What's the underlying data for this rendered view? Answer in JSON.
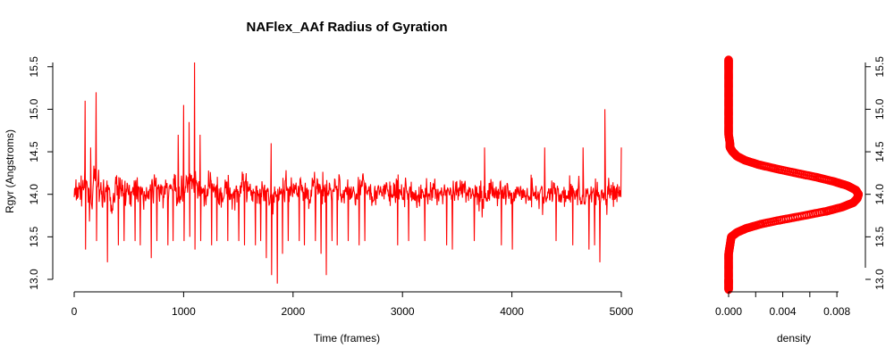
{
  "chart_data": [
    {
      "type": "line",
      "title": "NAFlex_AAf Radius of Gyration",
      "xlabel": "Time (frames)",
      "ylabel": "Rgyr (Angstroms)",
      "xlim": [
        0,
        5000
      ],
      "ylim": [
        13.0,
        15.55
      ],
      "xticks": [
        "0",
        "1000",
        "2000",
        "3000",
        "4000",
        "5000"
      ],
      "yticks": [
        "13.0",
        "13.5",
        "14.0",
        "14.5",
        "15.0",
        "15.5"
      ],
      "series": [
        {
          "color": "#ff0000",
          "n_frames": 5000,
          "x": [
            0,
            50,
            100,
            150,
            200,
            250,
            300,
            350,
            400,
            450,
            500,
            550,
            600,
            650,
            700,
            750,
            800,
            850,
            900,
            950,
            1000,
            1050,
            1100,
            1150,
            1200,
            1250,
            1300,
            1350,
            1400,
            1450,
            1500,
            1550,
            1600,
            1650,
            1700,
            1750,
            1800,
            1850,
            1900,
            1950,
            2000,
            2050,
            2100,
            2150,
            2200,
            2250,
            2300,
            2350,
            2400,
            2450,
            2500,
            2550,
            2600,
            2650,
            2700,
            2750,
            2800,
            2850,
            2900,
            2950,
            3000,
            3050,
            3100,
            3150,
            3200,
            3250,
            3300,
            3350,
            3400,
            3450,
            3500,
            3550,
            3600,
            3650,
            3700,
            3750,
            3800,
            3850,
            3900,
            3950,
            4000,
            4050,
            4100,
            4150,
            4200,
            4250,
            4300,
            4350,
            4400,
            4450,
            4500,
            4550,
            4600,
            4650,
            4700,
            4750,
            4800,
            4850,
            4900,
            4950,
            5000
          ],
          "y": [
            14.0,
            14.05,
            14.1,
            13.95,
            14.15,
            14.0,
            14.05,
            13.9,
            14.1,
            14.05,
            14.0,
            14.1,
            14.05,
            13.95,
            14.05,
            14.1,
            14.0,
            14.05,
            14.1,
            14.0,
            14.05,
            14.15,
            14.1,
            14.05,
            14.0,
            14.1,
            14.05,
            14.0,
            14.05,
            14.0,
            14.05,
            14.1,
            14.0,
            14.05,
            14.05,
            14.0,
            13.95,
            14.0,
            14.05,
            14.1,
            14.05,
            14.1,
            14.05,
            14.0,
            14.1,
            14.05,
            14.0,
            14.05,
            14.1,
            14.0,
            14.05,
            14.0,
            14.05,
            14.1,
            14.05,
            14.0,
            14.0,
            14.05,
            14.0,
            14.05,
            14.0,
            14.05,
            14.0,
            13.95,
            14.05,
            14.0,
            14.05,
            14.0,
            14.05,
            14.0,
            14.0,
            14.05,
            14.0,
            14.05,
            14.0,
            13.95,
            14.05,
            14.0,
            14.05,
            14.0,
            14.0,
            14.05,
            14.0,
            14.0,
            14.05,
            14.0,
            13.95,
            14.0,
            14.05,
            14.0,
            14.0,
            14.05,
            14.0,
            13.95,
            14.0,
            14.05,
            14.0,
            13.95,
            14.05,
            14.0,
            13.95
          ],
          "min": [
            13.6,
            13.5,
            13.35,
            13.5,
            13.45,
            13.4,
            13.2,
            13.5,
            13.4,
            13.45,
            13.5,
            13.45,
            13.4,
            13.5,
            13.25,
            13.45,
            13.5,
            13.4,
            13.45,
            13.5,
            13.45,
            13.5,
            13.35,
            13.45,
            13.4,
            13.4,
            13.45,
            13.5,
            13.45,
            13.5,
            13.45,
            13.4,
            13.5,
            13.4,
            13.45,
            13.25,
            13.05,
            12.95,
            13.3,
            13.45,
            13.5,
            13.45,
            13.4,
            13.5,
            13.45,
            13.3,
            13.05,
            13.45,
            13.4,
            13.5,
            13.45,
            13.5,
            13.4,
            13.45,
            13.5,
            13.45,
            13.4,
            13.5,
            13.45,
            13.4,
            13.5,
            13.45,
            13.4,
            13.5,
            13.45,
            13.4,
            13.5,
            13.45,
            13.4,
            13.35,
            13.45,
            13.5,
            13.4,
            13.45,
            13.5,
            13.45,
            13.5,
            13.45,
            13.4,
            13.45,
            13.35,
            13.5,
            13.45,
            13.4,
            13.5,
            13.45,
            13.5,
            13.4,
            13.45,
            13.5,
            13.45,
            13.4,
            13.5,
            13.45,
            13.35,
            13.4,
            13.2,
            13.45,
            13.5,
            13.45,
            13.5
          ],
          "max": [
            14.3,
            14.6,
            15.1,
            14.55,
            15.2,
            14.6,
            14.55,
            14.5,
            14.6,
            14.55,
            14.45,
            14.65,
            14.6,
            14.5,
            14.55,
            14.6,
            14.55,
            14.5,
            14.65,
            14.7,
            15.05,
            14.85,
            15.55,
            14.7,
            14.6,
            14.6,
            14.55,
            14.6,
            14.5,
            14.55,
            14.6,
            14.5,
            14.55,
            14.6,
            14.5,
            14.55,
            14.6,
            14.5,
            14.55,
            14.5,
            14.6,
            14.55,
            14.5,
            14.6,
            14.55,
            14.5,
            14.6,
            14.5,
            14.55,
            14.6,
            14.5,
            14.55,
            14.6,
            14.5,
            14.55,
            14.6,
            14.5,
            14.55,
            14.6,
            14.5,
            14.55,
            14.5,
            14.55,
            14.5,
            14.6,
            14.55,
            14.5,
            14.55,
            14.6,
            14.5,
            14.55,
            14.5,
            14.55,
            14.5,
            14.6,
            14.55,
            14.5,
            14.55,
            14.5,
            14.6,
            14.55,
            14.5,
            14.55,
            14.5,
            14.55,
            14.5,
            14.55,
            14.5,
            14.55,
            14.6,
            14.55,
            14.5,
            14.6,
            14.55,
            14.5,
            14.6,
            14.55,
            15.0,
            14.6,
            14.6,
            14.55
          ]
        }
      ]
    },
    {
      "type": "line",
      "xlabel": "density",
      "xlim": [
        0,
        0.0095
      ],
      "ylim": [
        13.0,
        15.55
      ],
      "xticks": [
        "0.000",
        "0.004",
        "0.008"
      ],
      "yticks": [
        "13.0",
        "13.5",
        "14.0",
        "14.5",
        "15.0",
        "15.5"
      ],
      "series": [
        {
          "color": "#ff0000",
          "marker": "circle",
          "y": [
            12.88,
            12.95,
            13.0,
            13.1,
            13.2,
            13.3,
            13.4,
            13.5,
            13.55,
            13.6,
            13.65,
            13.7,
            13.75,
            13.8,
            13.85,
            13.9,
            13.95,
            14.0,
            14.05,
            14.1,
            14.15,
            14.2,
            14.25,
            14.3,
            14.35,
            14.4,
            14.45,
            14.5,
            14.55,
            14.6,
            14.7,
            14.8,
            14.9,
            15.0,
            15.1,
            15.2,
            15.3,
            15.4,
            15.5,
            15.58
          ],
          "x": [
            0.0,
            0.0,
            0.0,
            0.0,
            0.0,
            0.0,
            0.0001,
            0.0002,
            0.0006,
            0.0013,
            0.0024,
            0.0039,
            0.0056,
            0.0072,
            0.0084,
            0.0092,
            0.0095,
            0.0096,
            0.0094,
            0.0088,
            0.0078,
            0.0065,
            0.005,
            0.0035,
            0.0022,
            0.0012,
            0.0006,
            0.0003,
            0.0001,
            0.0001,
            0.0,
            0.0,
            0.0,
            0.0,
            0.0,
            0.0,
            0.0,
            0.0,
            0.0,
            0.0
          ]
        }
      ]
    }
  ]
}
